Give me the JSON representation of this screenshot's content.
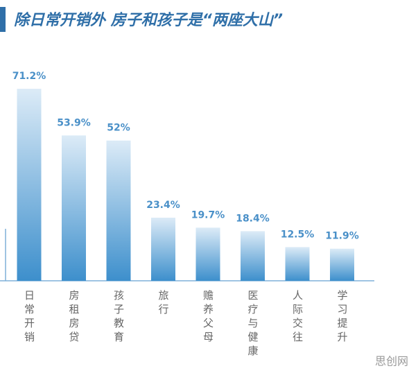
{
  "chart_data": {
    "type": "bar",
    "title": "除日常开销外 房子和孩子是“两座大山”",
    "categories": [
      "日常开销",
      "房租房贷",
      "孩子教育",
      "旅行",
      "赡养父母",
      "医疗与健康",
      "人际交往",
      "学习提升"
    ],
    "values": [
      71.2,
      53.9,
      52,
      23.4,
      19.7,
      18.4,
      12.5,
      11.9
    ],
    "value_labels": [
      "71.2%",
      "53.9%",
      "52%",
      "23.4%",
      "19.7%",
      "18.4%",
      "12.5%",
      "11.9%"
    ],
    "color": "#3d8fcc",
    "watermark": "思创网"
  }
}
